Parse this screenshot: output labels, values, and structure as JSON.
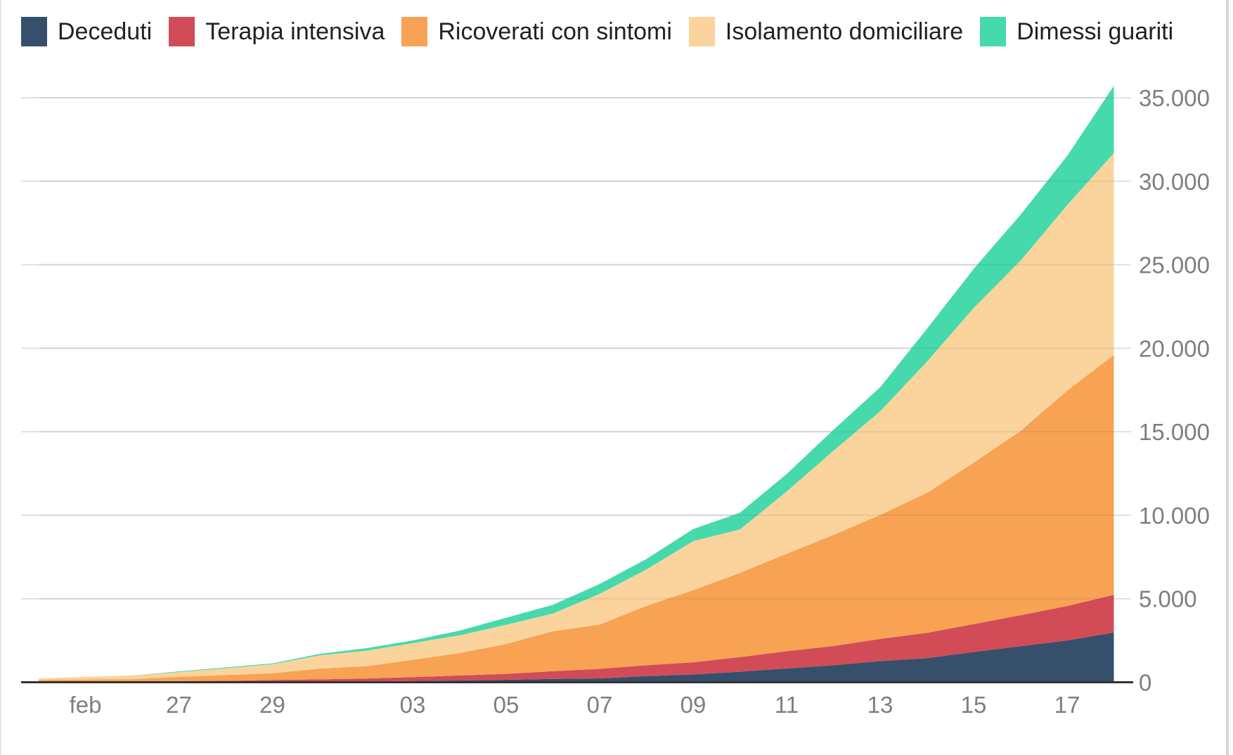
{
  "chart_data": {
    "type": "area",
    "stacked": true,
    "title": "",
    "xlabel": "",
    "ylabel": "",
    "grid": true,
    "legend_position": "top",
    "ylim": [
      0,
      35713
    ],
    "y_ticks": [
      {
        "label": "0",
        "value": 0
      },
      {
        "label": "5.000",
        "value": 5000
      },
      {
        "label": "10.000",
        "value": 10000
      },
      {
        "label": "15.000",
        "value": 15000
      },
      {
        "label": "20.000",
        "value": 20000
      },
      {
        "label": "25.000",
        "value": 25000
      },
      {
        "label": "30.000",
        "value": 30000
      },
      {
        "label": "35.000",
        "value": 35000
      }
    ],
    "x": [
      "24 feb",
      "25 feb",
      "26 feb",
      "27 feb",
      "28 feb",
      "29 feb",
      "01 mar",
      "02 mar",
      "03 mar",
      "04 mar",
      "05 mar",
      "06 mar",
      "07 mar",
      "08 mar",
      "09 mar",
      "10 mar",
      "11 mar",
      "12 mar",
      "13 mar",
      "14 mar",
      "15 mar",
      "16 mar",
      "17 mar",
      "18 mar"
    ],
    "x_tick_labels": [
      {
        "label": "feb",
        "day_index": 1
      },
      {
        "label": "27",
        "day_index": 3
      },
      {
        "label": "29",
        "day_index": 5
      },
      {
        "label": "03",
        "day_index": 8
      },
      {
        "label": "05",
        "day_index": 10
      },
      {
        "label": "07",
        "day_index": 12
      },
      {
        "label": "09",
        "day_index": 14
      },
      {
        "label": "11",
        "day_index": 16
      },
      {
        "label": "13",
        "day_index": 18
      },
      {
        "label": "15",
        "day_index": 20
      },
      {
        "label": "17",
        "day_index": 22
      }
    ],
    "series": [
      {
        "name": "Deceduti",
        "color": "#36506b",
        "values": [
          7,
          10,
          12,
          17,
          21,
          29,
          34,
          52,
          79,
          107,
          148,
          197,
          233,
          366,
          463,
          631,
          827,
          1016,
          1266,
          1441,
          1809,
          2158,
          2503,
          2978
        ]
      },
      {
        "name": "Terapia intensiva",
        "color": "#d14c57",
        "values": [
          26,
          35,
          36,
          56,
          64,
          105,
          140,
          166,
          229,
          295,
          351,
          462,
          567,
          650,
          733,
          877,
          1028,
          1153,
          1328,
          1518,
          1672,
          1851,
          2060,
          2257
        ]
      },
      {
        "name": "Ricoverati con sintomi",
        "color": "#f8a254",
        "values": [
          101,
          114,
          128,
          248,
          345,
          401,
          639,
          742,
          1034,
          1346,
          1790,
          2394,
          2651,
          3557,
          4316,
          5038,
          5838,
          6650,
          7426,
          8372,
          9663,
          11025,
          12894,
          14363
        ]
      },
      {
        "name": "Isolamento domiciliare",
        "color": "#fbd39c",
        "values": [
          94,
          162,
          221,
          284,
          412,
          543,
          798,
          927,
          1000,
          1065,
          1155,
          1060,
          1843,
          2180,
          2936,
          2599,
          3724,
          5036,
          6201,
          7860,
          9268,
          10197,
          11108,
          12090
        ]
      },
      {
        "name": "Dimessi guariti",
        "color": "#46d9ac",
        "values": [
          1,
          1,
          3,
          45,
          46,
          50,
          83,
          149,
          160,
          276,
          414,
          523,
          589,
          622,
          724,
          1004,
          1045,
          1258,
          1439,
          1966,
          2335,
          2749,
          2941,
          4025
        ]
      }
    ]
  },
  "colors": {
    "gridline": "#e1e1e1",
    "baseline": "#333333",
    "axis_text": "#7e7e7e",
    "legend_text": "#202124",
    "background": "#ffffff"
  }
}
